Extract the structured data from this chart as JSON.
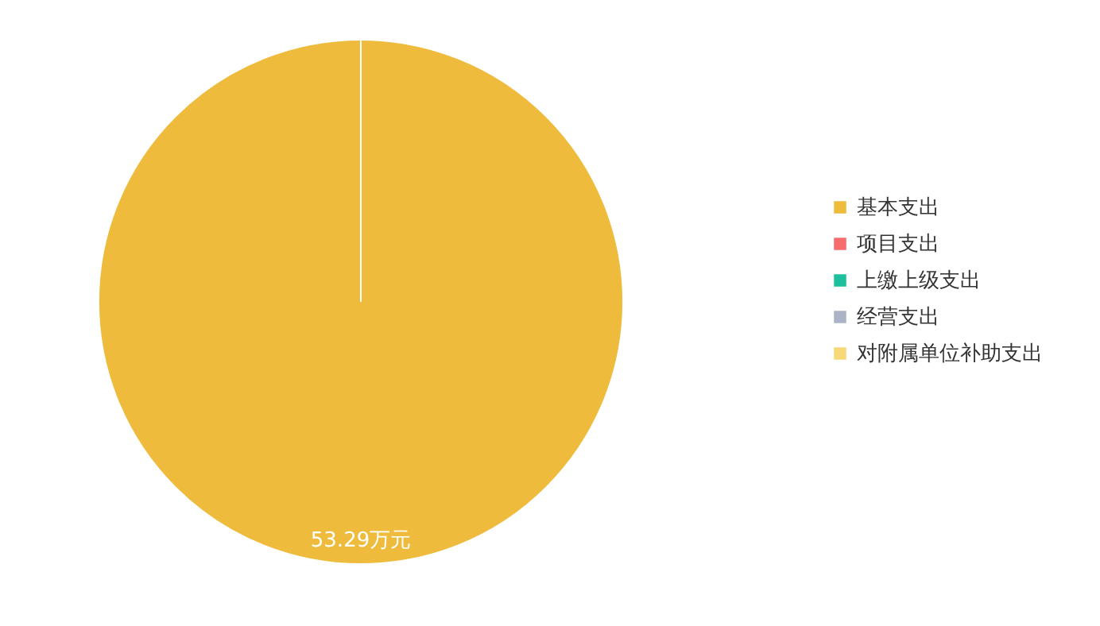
{
  "chart_data": {
    "type": "pie",
    "categories": [
      "基本支出",
      "项目支出",
      "上缴上级支出",
      "经营支出",
      "对附属单位补助支出"
    ],
    "values": [
      53.29,
      0,
      0,
      0,
      0
    ],
    "colors": [
      "#efbb3d",
      "#f76c6c",
      "#1dbf9c",
      "#aab4c6",
      "#f7d978"
    ],
    "value_labels": [
      "53.29万元",
      null,
      null,
      null,
      null
    ],
    "legend": "right"
  }
}
